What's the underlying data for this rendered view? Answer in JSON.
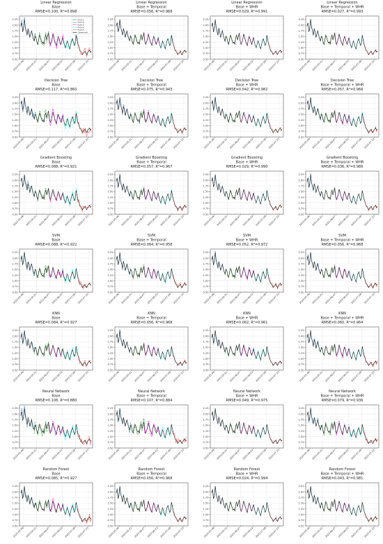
{
  "figure": {
    "rows": 7,
    "cols": 4
  },
  "colors": {
    "fold1": "#1f77b4",
    "fold2": "#2ca02c",
    "fold3": "#ff00ff",
    "fold4": "#00ffff",
    "fold5": "#ff3b30",
    "observed": "#222222",
    "grid": "#e6e6e6"
  },
  "legend": {
    "placement": "top-right",
    "entries": [
      "Fold 1",
      "Fold 2",
      "Fold 3",
      "Fold 4",
      "Fold 5",
      "Observed"
    ]
  },
  "axes": {
    "ylim": [
      0.5,
      2.4
    ],
    "yticks": [
      "0.50",
      "0.75",
      "1.00",
      "1.25",
      "1.50",
      "1.75",
      "2.00",
      "2.25"
    ],
    "ytick_values": [
      0.5,
      0.75,
      1.0,
      1.25,
      1.5,
      1.75,
      2.0,
      2.25
    ],
    "xticks": [
      "2023-05-06",
      "2023-05-21",
      "2023-06-07",
      "2023-06-22",
      "2023-07-08",
      "2023-07-23"
    ],
    "grid": true
  },
  "chart_data": {
    "type": "line",
    "observed": [
      1.95,
      2.1,
      1.7,
      1.85,
      2.25,
      1.9,
      1.75,
      1.55,
      1.85,
      1.7,
      1.45,
      1.6,
      1.75,
      1.55,
      1.4,
      1.3,
      1.5,
      1.45,
      1.25,
      1.15,
      1.35,
      1.55,
      1.45,
      1.3,
      1.2,
      1.25,
      1.15,
      1.45,
      1.55,
      1.35,
      1.5,
      1.65,
      1.3,
      1.15,
      1.25,
      1.4,
      1.6,
      1.45,
      1.3,
      1.2,
      1.1,
      1.35,
      1.5,
      1.4,
      1.25,
      1.15,
      1.3,
      1.45,
      1.25,
      1.1,
      1.0,
      1.15,
      1.3,
      1.2,
      1.05,
      0.95,
      1.15,
      1.3,
      1.4,
      1.25,
      1.1,
      1.2,
      1.55,
      1.35,
      1.15,
      1.05,
      0.9,
      0.85,
      0.8,
      0.7,
      0.75,
      0.8,
      0.85,
      0.75,
      0.7,
      0.8,
      0.85,
      0.9,
      0.8,
      0.85
    ],
    "panels": [
      {
        "model": "Linear Regression",
        "variant": "Base",
        "metrics": "RMSE=0.100, R²=0.898",
        "noise": 0.09
      },
      {
        "model": "Linear Regression",
        "variant": "Base + Temporal",
        "metrics": "RMSE=0.056, R²=0.968",
        "noise": 0.04
      },
      {
        "model": "Linear Regression",
        "variant": "Base + WHR",
        "metrics": "RMSE=0.029, R²=0.991",
        "noise": 0.025
      },
      {
        "model": "Linear Regression",
        "variant": "Base + Temporal + WHR",
        "metrics": "RMSE=0.027, R²=0.993",
        "noise": 0.022
      },
      {
        "model": "Decision Tree",
        "variant": "Base",
        "metrics": "RMSE=0.117, R²=0.860",
        "noise": 0.11
      },
      {
        "model": "Decision Tree",
        "variant": "Base + Temporal",
        "metrics": "RMSE=0.075, R²=0.943",
        "noise": 0.06
      },
      {
        "model": "Decision Tree",
        "variant": "Base + WHR",
        "metrics": "RMSE=0.042, R²=0.982",
        "noise": 0.035
      },
      {
        "model": "Decision Tree",
        "variant": "Base + Temporal + WHR",
        "metrics": "RMSE=0.057, R²=0.966",
        "noise": 0.045
      },
      {
        "model": "Gradient Boosting",
        "variant": "Base",
        "metrics": "RMSE=0.088, R²=0.921",
        "noise": 0.08
      },
      {
        "model": "Gradient Boosting",
        "variant": "Base + Temporal",
        "metrics": "RMSE=0.057, R²=0.967",
        "noise": 0.045
      },
      {
        "model": "Gradient Boosting",
        "variant": "Base + WHR",
        "metrics": "RMSE=0.029, R²=0.990",
        "noise": 0.025
      },
      {
        "model": "Gradient Boosting",
        "variant": "Base + Temporal + WHR",
        "metrics": "RMSE=0.036, R²=0.986",
        "noise": 0.03
      },
      {
        "model": "SVM",
        "variant": "Base",
        "metrics": "RMSE=0.088, R²=0.922",
        "noise": 0.085
      },
      {
        "model": "SVM",
        "variant": "Base + Temporal",
        "metrics": "RMSE=0.064, R²=0.958",
        "noise": 0.05
      },
      {
        "model": "SVM",
        "variant": "Base + WHR",
        "metrics": "RMSE=0.052, R²=0.972",
        "noise": 0.045
      },
      {
        "model": "SVM",
        "variant": "Base + Temporal + WHR",
        "metrics": "RMSE=0.056, R²=0.968",
        "noise": 0.045
      },
      {
        "model": "KNN",
        "variant": "Base",
        "metrics": "RMSE=0.084, R²=0.927",
        "noise": 0.08
      },
      {
        "model": "KNN",
        "variant": "Base + Temporal",
        "metrics": "RMSE=0.056, R²=0.968",
        "noise": 0.045
      },
      {
        "model": "KNN",
        "variant": "Base + WHR",
        "metrics": "RMSE=0.062, R²=0.961",
        "noise": 0.05
      },
      {
        "model": "KNN",
        "variant": "Base + Temporal + WHR",
        "metrics": "RMSE=0.060, R²=0.964",
        "noise": 0.05
      },
      {
        "model": "Neural Network",
        "variant": "Base",
        "metrics": "RMSE=0.108, R²=0.880",
        "noise": 0.11
      },
      {
        "model": "Neural Network",
        "variant": "Base + Temporal",
        "metrics": "RMSE=0.107, R²=0.884",
        "noise": 0.1
      },
      {
        "model": "Neural Network",
        "variant": "Base + WHR",
        "metrics": "RMSE=0.049, R²=0.975",
        "noise": 0.04
      },
      {
        "model": "Neural Network",
        "variant": "Base + Temporal + WHR",
        "metrics": "RMSE=0.079, R²=0.936",
        "noise": 0.07
      },
      {
        "model": "Random Forest",
        "variant": "Base",
        "metrics": "RMSE=0.085, R²=0.927",
        "noise": 0.08
      },
      {
        "model": "Random Forest",
        "variant": "Base + Temporal",
        "metrics": "RMSE=0.056, R²=0.968",
        "noise": 0.045
      },
      {
        "model": "Random Forest",
        "variant": "Base + WHR",
        "metrics": "RMSE=0.024, R²=0.994",
        "noise": 0.02
      },
      {
        "model": "Random Forest",
        "variant": "Base + Temporal + WHR",
        "metrics": "RMSE=0.043, R²=0.981",
        "noise": 0.035
      }
    ]
  }
}
